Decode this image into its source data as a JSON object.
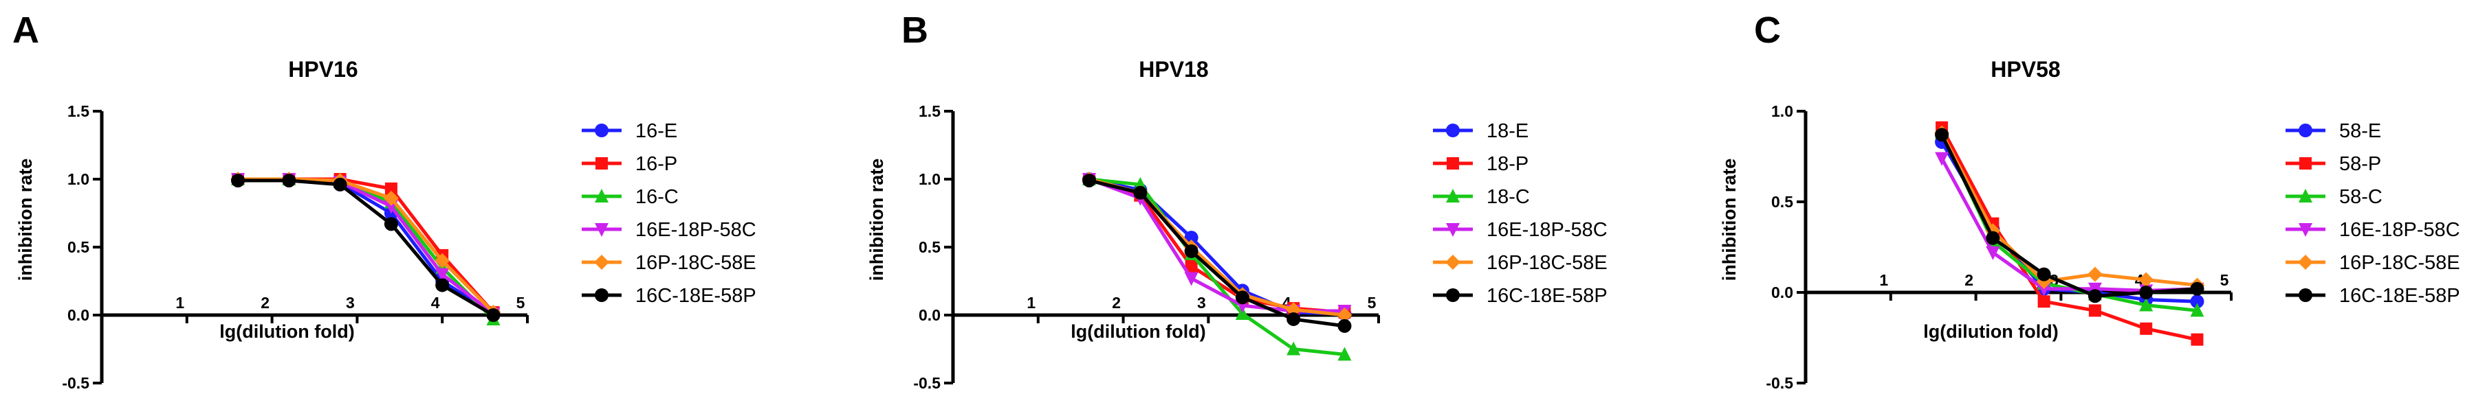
{
  "chart_data": [
    {
      "type": "line",
      "panel_label": "A",
      "title": "HPV16",
      "xlabel": "lg(dilution fold)",
      "ylabel": "inhibition rate",
      "xlim": [
        0,
        5
      ],
      "ylim": [
        -0.5,
        1.5
      ],
      "x_tick_labels": [
        "1",
        "2",
        "3",
        "4",
        "5"
      ],
      "y_tick_labels": [
        "1.5",
        "1.0",
        "0.5",
        "0.0",
        "-0.5"
      ],
      "x": [
        1.6,
        2.2,
        2.8,
        3.4,
        4.0,
        4.6
      ],
      "series": [
        {
          "name": "16-E",
          "color": "#1f1fff",
          "marker": "circle",
          "values": [
            0.99,
            0.99,
            0.97,
            0.75,
            0.25,
            0.01
          ]
        },
        {
          "name": "16-P",
          "color": "#ff1010",
          "marker": "square",
          "values": [
            1.0,
            1.0,
            1.0,
            0.93,
            0.44,
            0.02
          ]
        },
        {
          "name": "16-C",
          "color": "#18c818",
          "marker": "triangle-up",
          "values": [
            1.0,
            1.0,
            0.98,
            0.83,
            0.35,
            -0.03
          ]
        },
        {
          "name": "16E-18P-58C",
          "color": "#cc22ee",
          "marker": "triangle-down",
          "values": [
            1.0,
            1.0,
            0.98,
            0.8,
            0.3,
            0.01
          ]
        },
        {
          "name": "16P-18C-58E",
          "color": "#ff8c1a",
          "marker": "diamond",
          "values": [
            1.0,
            1.0,
            0.99,
            0.86,
            0.4,
            0.02
          ]
        },
        {
          "name": "16C-18E-58P",
          "color": "#000000",
          "marker": "circle",
          "values": [
            0.99,
            0.99,
            0.96,
            0.67,
            0.22,
            0.0
          ]
        }
      ]
    },
    {
      "type": "line",
      "panel_label": "B",
      "title": "HPV18",
      "xlabel": "lg(dilution fold)",
      "ylabel": "inhibition rate",
      "xlim": [
        0,
        5
      ],
      "ylim": [
        -0.5,
        1.5
      ],
      "x_tick_labels": [
        "1",
        "2",
        "3",
        "4",
        "5"
      ],
      "y_tick_labels": [
        "1.5",
        "1.0",
        "0.5",
        "0.0",
        "-0.5"
      ],
      "x": [
        1.6,
        2.2,
        2.8,
        3.4,
        4.0,
        4.6
      ],
      "series": [
        {
          "name": "18-E",
          "color": "#1f1fff",
          "marker": "circle",
          "values": [
            1.0,
            0.92,
            0.57,
            0.18,
            0.02,
            0.01
          ]
        },
        {
          "name": "18-P",
          "color": "#ff1010",
          "marker": "square",
          "values": [
            1.0,
            0.88,
            0.36,
            0.12,
            0.05,
            0.02
          ]
        },
        {
          "name": "18-C",
          "color": "#18c818",
          "marker": "triangle-up",
          "values": [
            1.0,
            0.96,
            0.45,
            0.01,
            -0.25,
            -0.29
          ]
        },
        {
          "name": "16E-18P-58C",
          "color": "#cc22ee",
          "marker": "triangle-down",
          "values": [
            1.0,
            0.86,
            0.27,
            0.07,
            0.03,
            0.03
          ]
        },
        {
          "name": "16P-18C-58E",
          "color": "#ff8c1a",
          "marker": "diamond",
          "values": [
            1.0,
            0.9,
            0.5,
            0.15,
            0.04,
            0.0
          ]
        },
        {
          "name": "16C-18E-58P",
          "color": "#000000",
          "marker": "circle",
          "values": [
            0.99,
            0.9,
            0.47,
            0.13,
            -0.03,
            -0.08
          ]
        }
      ]
    },
    {
      "type": "line",
      "panel_label": "C",
      "title": "HPV58",
      "xlabel": "lg(dilution fold)",
      "ylabel": "inhibition rate",
      "xlim": [
        0,
        5
      ],
      "ylim": [
        -0.5,
        1.0
      ],
      "x_tick_labels": [
        "1",
        "2",
        "3",
        "4",
        "5"
      ],
      "y_tick_labels": [
        "1.0",
        "0.5",
        "0.0",
        "-0.5"
      ],
      "x": [
        1.6,
        2.2,
        2.8,
        3.4,
        4.0,
        4.6
      ],
      "series": [
        {
          "name": "58-E",
          "color": "#1f1fff",
          "marker": "circle",
          "values": [
            0.83,
            0.35,
            0.02,
            0.0,
            -0.04,
            -0.05
          ]
        },
        {
          "name": "58-P",
          "color": "#ff1010",
          "marker": "square",
          "values": [
            0.91,
            0.38,
            -0.05,
            -0.1,
            -0.2,
            -0.26
          ]
        },
        {
          "name": "58-C",
          "color": "#18c818",
          "marker": "triangle-up",
          "values": [
            0.88,
            0.28,
            0.05,
            -0.01,
            -0.07,
            -0.1
          ]
        },
        {
          "name": "16E-18P-58C",
          "color": "#cc22ee",
          "marker": "triangle-down",
          "values": [
            0.74,
            0.22,
            0.02,
            0.02,
            0.01,
            0.02
          ]
        },
        {
          "name": "16P-18C-58E",
          "color": "#ff8c1a",
          "marker": "diamond",
          "values": [
            0.88,
            0.34,
            0.06,
            0.1,
            0.07,
            0.04
          ]
        },
        {
          "name": "16C-18E-58P",
          "color": "#000000",
          "marker": "circle",
          "values": [
            0.87,
            0.3,
            0.1,
            -0.02,
            0.0,
            0.02
          ]
        }
      ]
    }
  ]
}
